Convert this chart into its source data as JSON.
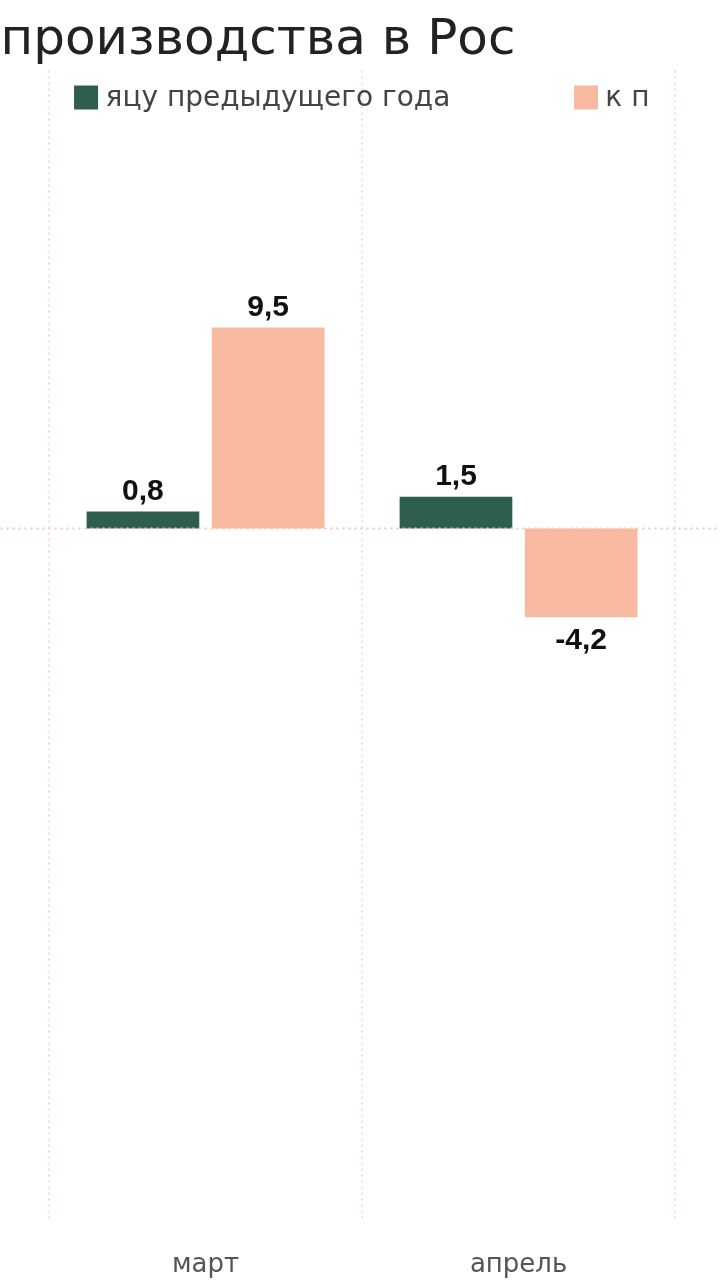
{
  "chart_data": {
    "type": "bar",
    "title": "производства в Рос",
    "categories": [
      "март",
      "апрель"
    ],
    "series": [
      {
        "name": "яцу предыдущего года",
        "color": "#2e5e4e",
        "values": [
          0.8,
          1.5
        ],
        "value_labels": [
          "0,8",
          "1,5"
        ]
      },
      {
        "name": "к п",
        "color": "#f7b9a0",
        "values": [
          9.5,
          -4.2
        ],
        "value_labels": [
          "9,5",
          "-4,2"
        ]
      }
    ],
    "legend": "top",
    "grid": "x",
    "tick_labels": "x",
    "ref_lines": [
      {
        "axis": "y",
        "value": 0,
        "color": "#f5c6a8",
        "line_style": "dotted"
      }
    ]
  }
}
